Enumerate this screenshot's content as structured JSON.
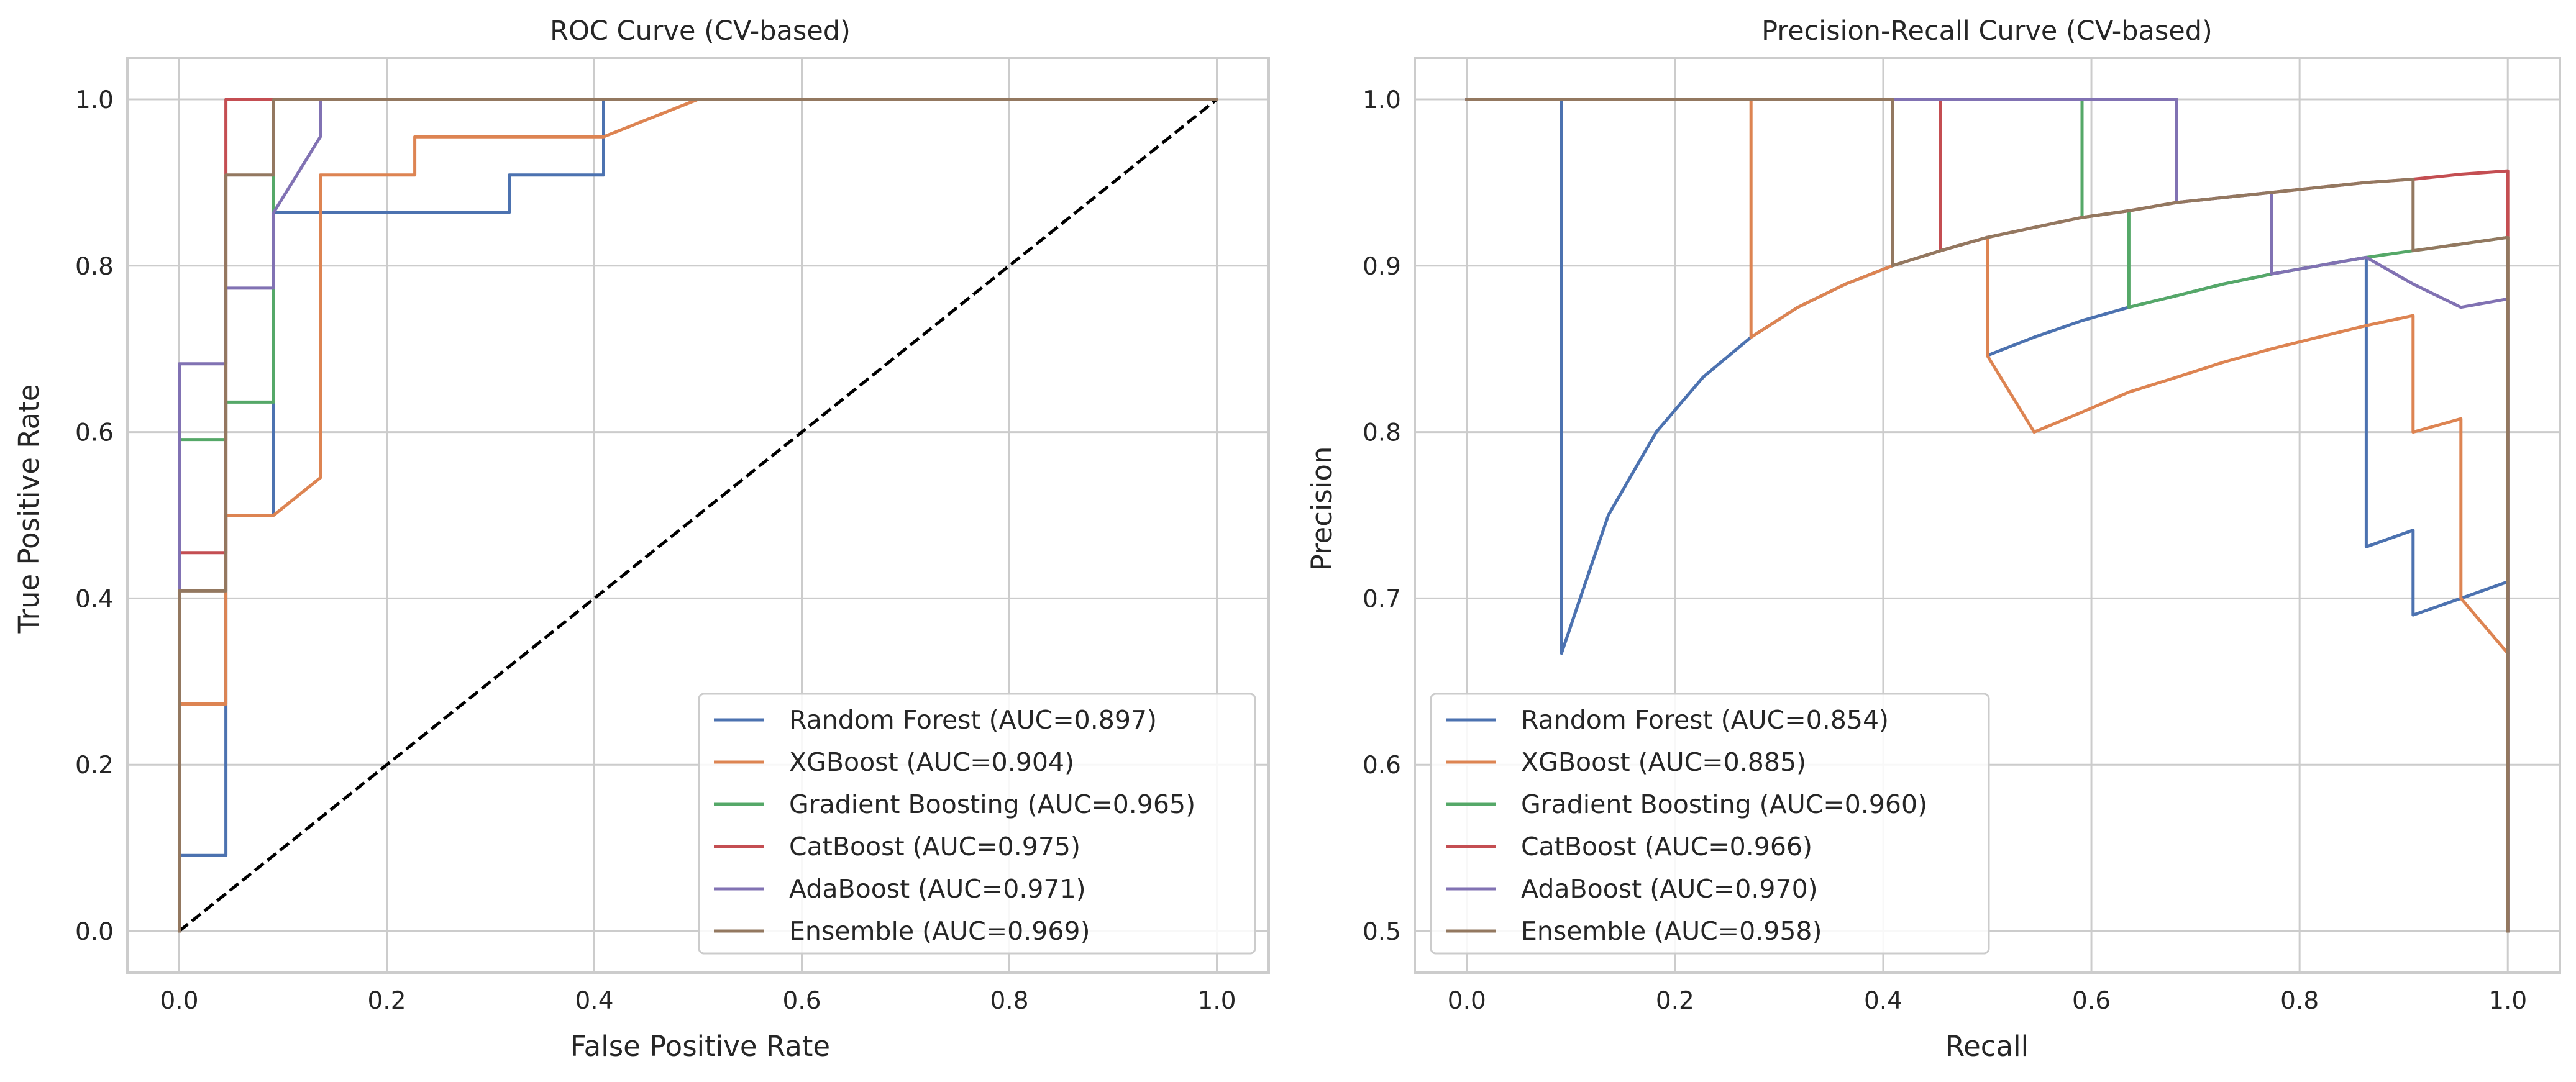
{
  "chart_data": [
    {
      "type": "line",
      "title": "ROC Curve (CV-based)",
      "xlabel": "False Positive Rate",
      "ylabel": "True Positive Rate",
      "xlim": [
        -0.05,
        1.05
      ],
      "ylim": [
        -0.05,
        1.05
      ],
      "xticks": [
        0.0,
        0.2,
        0.4,
        0.6,
        0.8,
        1.0
      ],
      "yticks": [
        0.0,
        0.2,
        0.4,
        0.6,
        0.8,
        1.0
      ],
      "xtick_labels": [
        "0.0",
        "0.2",
        "0.4",
        "0.6",
        "0.8",
        "1.0"
      ],
      "ytick_labels": [
        "0.0",
        "0.2",
        "0.4",
        "0.6",
        "0.8",
        "1.0"
      ],
      "grid": true,
      "legend_position": "lower-right",
      "reference_line": {
        "x": [
          0,
          1
        ],
        "y": [
          0,
          1
        ],
        "style": "dashed",
        "color": "#000000"
      },
      "series": [
        {
          "name": "Random Forest (AUC=0.897)",
          "color": "#4c72b0",
          "x": [
            0,
            0,
            0.045,
            0.045,
            0.091,
            0.091,
            0.318,
            0.318,
            0.409,
            0.409,
            1.0
          ],
          "y": [
            0,
            0.091,
            0.091,
            0.5,
            0.5,
            0.864,
            0.864,
            0.909,
            0.909,
            1.0,
            1.0
          ]
        },
        {
          "name": "XGBoost (AUC=0.904)",
          "color": "#dd8452",
          "x": [
            0,
            0,
            0.045,
            0.045,
            0.091,
            0.136,
            0.136,
            0.227,
            0.227,
            0.409,
            0.5,
            1.0
          ],
          "y": [
            0,
            0.273,
            0.273,
            0.5,
            0.5,
            0.545,
            0.909,
            0.909,
            0.955,
            0.955,
            1.0,
            1.0
          ]
        },
        {
          "name": "Gradient Boosting (AUC=0.965)",
          "color": "#55a868",
          "x": [
            0,
            0,
            0.045,
            0.045,
            0.091,
            0.091,
            1.0
          ],
          "y": [
            0,
            0.591,
            0.591,
            0.636,
            0.636,
            1.0,
            1.0
          ]
        },
        {
          "name": "CatBoost (AUC=0.975)",
          "color": "#c44e52",
          "x": [
            0,
            0,
            0.045,
            0.045,
            1.0
          ],
          "y": [
            0,
            0.455,
            0.455,
            1.0,
            1.0
          ]
        },
        {
          "name": "AdaBoost (AUC=0.971)",
          "color": "#8172b3",
          "x": [
            0,
            0,
            0.045,
            0.045,
            0.091,
            0.091,
            0.136,
            0.136,
            1.0
          ],
          "y": [
            0,
            0.682,
            0.682,
            0.773,
            0.773,
            0.864,
            0.955,
            1.0,
            1.0
          ]
        },
        {
          "name": "Ensemble (AUC=0.969)",
          "color": "#937860",
          "x": [
            0,
            0,
            0.045,
            0.045,
            0.091,
            0.091,
            1.0
          ],
          "y": [
            0,
            0.409,
            0.409,
            0.909,
            0.909,
            1.0,
            1.0
          ]
        }
      ]
    },
    {
      "type": "line",
      "title": "Precision-Recall Curve (CV-based)",
      "xlabel": "Recall",
      "ylabel": "Precision",
      "xlim": [
        -0.05,
        1.05
      ],
      "ylim": [
        0.475,
        1.025
      ],
      "xticks": [
        0.0,
        0.2,
        0.4,
        0.6,
        0.8,
        1.0
      ],
      "yticks": [
        0.5,
        0.6,
        0.7,
        0.8,
        0.9,
        1.0
      ],
      "xtick_labels": [
        "0.0",
        "0.2",
        "0.4",
        "0.6",
        "0.8",
        "1.0"
      ],
      "ytick_labels": [
        "0.5",
        "0.6",
        "0.7",
        "0.8",
        "0.9",
        "1.0"
      ],
      "grid": true,
      "legend_position": "lower-left",
      "series": [
        {
          "name": "Random Forest (AUC=0.854)",
          "color": "#4c72b0",
          "x": [
            0.0,
            0.091,
            0.091,
            0.136,
            0.182,
            0.227,
            0.273,
            0.318,
            0.364,
            0.409,
            0.455,
            0.5,
            0.5,
            0.545,
            0.591,
            0.636,
            0.682,
            0.727,
            0.773,
            0.818,
            0.864,
            0.864,
            0.909,
            0.909,
            0.955,
            1.0,
            1.0
          ],
          "y": [
            1.0,
            1.0,
            0.667,
            0.75,
            0.8,
            0.833,
            0.857,
            0.875,
            0.889,
            0.9,
            0.909,
            0.917,
            0.846,
            0.857,
            0.867,
            0.875,
            0.882,
            0.889,
            0.895,
            0.9,
            0.905,
            0.731,
            0.741,
            0.69,
            0.7,
            0.71,
            0.5
          ]
        },
        {
          "name": "XGBoost (AUC=0.885)",
          "color": "#dd8452",
          "x": [
            0.0,
            0.273,
            0.273,
            0.318,
            0.364,
            0.409,
            0.455,
            0.5,
            0.5,
            0.545,
            0.591,
            0.636,
            0.682,
            0.727,
            0.773,
            0.818,
            0.864,
            0.909,
            0.909,
            0.955,
            0.955,
            1.0
          ],
          "y": [
            1.0,
            1.0,
            0.857,
            0.875,
            0.889,
            0.9,
            0.909,
            0.917,
            0.846,
            0.8,
            0.812,
            0.824,
            0.833,
            0.842,
            0.85,
            0.857,
            0.864,
            0.87,
            0.8,
            0.808,
            0.7,
            0.667
          ]
        },
        {
          "name": "Gradient Boosting (AUC=0.960)",
          "color": "#55a868",
          "x": [
            0.0,
            0.591,
            0.591,
            0.636,
            0.636,
            0.682,
            0.727,
            0.773,
            0.818,
            0.864,
            0.909,
            0.955,
            1.0,
            1.0
          ],
          "y": [
            1.0,
            1.0,
            0.929,
            0.933,
            0.875,
            0.882,
            0.889,
            0.895,
            0.9,
            0.905,
            0.909,
            0.913,
            0.917,
            0.5
          ]
        },
        {
          "name": "CatBoost (AUC=0.966)",
          "color": "#c44e52",
          "x": [
            0.0,
            0.455,
            0.455,
            0.5,
            0.545,
            0.591,
            0.636,
            0.682,
            0.727,
            0.773,
            0.818,
            0.864,
            0.909,
            0.955,
            1.0,
            1.0
          ],
          "y": [
            1.0,
            1.0,
            0.909,
            0.917,
            0.923,
            0.929,
            0.933,
            0.938,
            0.941,
            0.944,
            0.947,
            0.95,
            0.952,
            0.955,
            0.957,
            0.5
          ]
        },
        {
          "name": "AdaBoost (AUC=0.970)",
          "color": "#8172b3",
          "x": [
            0.0,
            0.682,
            0.682,
            0.727,
            0.773,
            0.773,
            0.818,
            0.864,
            0.909,
            0.955,
            1.0,
            1.0
          ],
          "y": [
            1.0,
            1.0,
            0.938,
            0.941,
            0.944,
            0.895,
            0.9,
            0.905,
            0.889,
            0.875,
            0.88,
            0.5
          ]
        },
        {
          "name": "Ensemble (AUC=0.958)",
          "color": "#937860",
          "x": [
            0.0,
            0.409,
            0.409,
            0.455,
            0.5,
            0.545,
            0.591,
            0.636,
            0.682,
            0.727,
            0.773,
            0.818,
            0.864,
            0.909,
            0.909,
            0.955,
            1.0,
            1.0
          ],
          "y": [
            1.0,
            1.0,
            0.9,
            0.909,
            0.917,
            0.923,
            0.929,
            0.933,
            0.938,
            0.941,
            0.944,
            0.947,
            0.95,
            0.952,
            0.909,
            0.913,
            0.917,
            0.5
          ]
        }
      ]
    }
  ]
}
